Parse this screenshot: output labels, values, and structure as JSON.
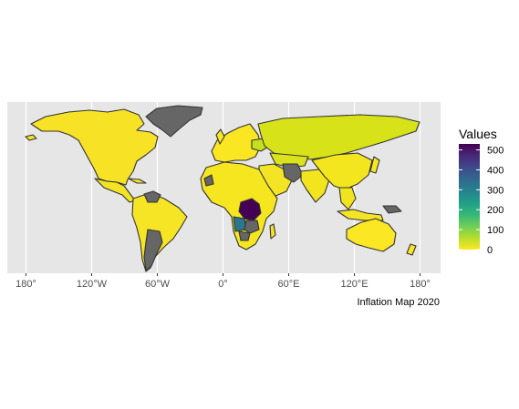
{
  "map": {
    "caption": "Inflation Map 2020",
    "longitude_ticks": [
      "180°",
      "120°W",
      "60°W",
      "0°",
      "60°E",
      "120°E",
      "180°"
    ],
    "longitude_values": [
      -180,
      -120,
      -60,
      0,
      60,
      120,
      180
    ],
    "panel_background": "#e6e6e6",
    "missing_color": "#666666",
    "border_color": "#333333"
  },
  "legend": {
    "title": "Values",
    "ticks": [
      500,
      400,
      300,
      200,
      100,
      0
    ],
    "tick_labels": [
      "500",
      "400",
      "300",
      "200",
      "100",
      "0"
    ],
    "range": [
      0,
      530
    ],
    "palette": [
      "#fde725",
      "#b5de2b",
      "#6ece58",
      "#35b779",
      "#1f9e89",
      "#26828e",
      "#31688e",
      "#3e4989",
      "#482878",
      "#440154"
    ]
  },
  "regions": [
    {
      "name": "North America",
      "value": 3,
      "color": "#f7e225"
    },
    {
      "name": "Greenland",
      "value": null,
      "color": "#666666"
    },
    {
      "name": "South America",
      "value": 5,
      "color": "#f6e525"
    },
    {
      "name": "Venezuela",
      "value": null,
      "color": "#666666"
    },
    {
      "name": "Argentina",
      "value": null,
      "color": "#666666"
    },
    {
      "name": "Europe",
      "value": 2,
      "color": "#fae622"
    },
    {
      "name": "Ukraine",
      "value": 30,
      "color": "#c6e020"
    },
    {
      "name": "Russia / Central Asia",
      "value": 25,
      "color": "#d7e219"
    },
    {
      "name": "Asia",
      "value": 4,
      "color": "#f2e51d"
    },
    {
      "name": "Iran",
      "value": null,
      "color": "#666666"
    },
    {
      "name": "Africa",
      "value": 8,
      "color": "#f5e61f"
    },
    {
      "name": "DR Congo",
      "value": 510,
      "color": "#440154"
    },
    {
      "name": "Angola",
      "value": 320,
      "color": "#2a788e"
    },
    {
      "name": "Zambia",
      "value": null,
      "color": "#666666"
    },
    {
      "name": "Australia",
      "value": 1,
      "color": "#fbe723"
    },
    {
      "name": "New Zealand",
      "value": 2,
      "color": "#fae622"
    }
  ]
}
